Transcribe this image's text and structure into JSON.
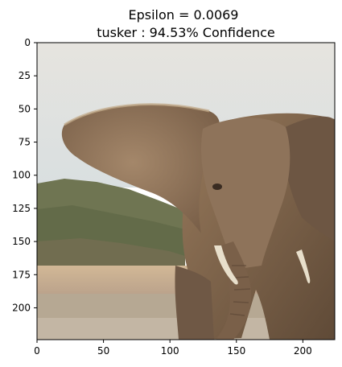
{
  "title": {
    "line1": "Epsilon = 0.0069",
    "line2": "tusker : 94.53% Confidence"
  },
  "axes": {
    "x_range": [
      0,
      224
    ],
    "y_range": [
      0,
      224
    ],
    "x_ticks": [
      0,
      50,
      100,
      150,
      200
    ],
    "y_ticks": [
      0,
      25,
      50,
      75,
      100,
      125,
      150,
      175,
      200
    ]
  },
  "image": {
    "subject": "elephant",
    "colors": {
      "sky": "#dde1e1",
      "hills": "#6e7550",
      "hills_dark": "#4f5a3a",
      "sand": "#c9b18a",
      "water": "#b8a892",
      "elephant_skin": "#8a7257",
      "elephant_light": "#a78a6a",
      "elephant_dark": "#5e4a38",
      "tusk": "#e6dcc6"
    }
  }
}
